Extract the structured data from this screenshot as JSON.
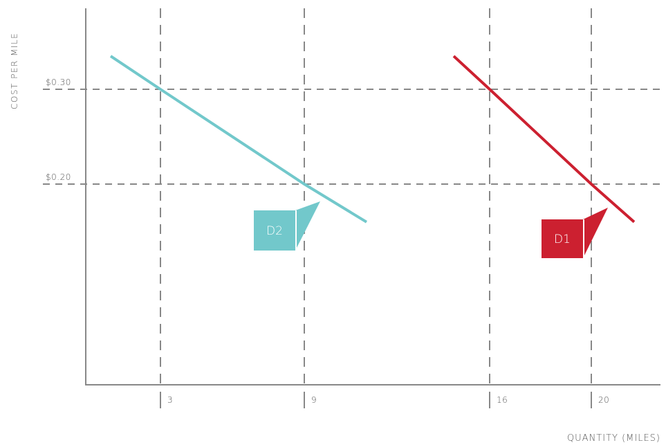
{
  "chart_data": {
    "type": "line",
    "ylabel": "COST  PER  MILE",
    "xlabel": "QUANTITY (MILES)",
    "y_ticks": [
      {
        "value": 0.3,
        "label": "$0.30"
      },
      {
        "value": 0.2,
        "label": "$0.20"
      }
    ],
    "x_ticks": [
      {
        "value": 3,
        "label": "3"
      },
      {
        "value": 9,
        "label": "9"
      },
      {
        "value": 16,
        "label": "16"
      },
      {
        "value": 20,
        "label": "20"
      }
    ],
    "series": [
      {
        "name": "D2",
        "color": "#72c8cb",
        "points": [
          [
            0.0,
            0.335
          ],
          [
            3,
            0.3
          ],
          [
            9,
            0.2
          ],
          [
            11.6,
            0.16
          ]
        ]
      },
      {
        "name": "D1",
        "color": "#cc2030",
        "points": [
          [
            14.3,
            0.335
          ],
          [
            16,
            0.3
          ],
          [
            20,
            0.2
          ],
          [
            21.5,
            0.16
          ]
        ]
      }
    ],
    "callouts": [
      {
        "label": "D2",
        "color": "#72c8cb"
      },
      {
        "label": "D1",
        "color": "#cc2030"
      }
    ],
    "grid": "dashed at tick values",
    "axes_colors": {
      "axis": "#888888",
      "grid": "#888888"
    }
  }
}
